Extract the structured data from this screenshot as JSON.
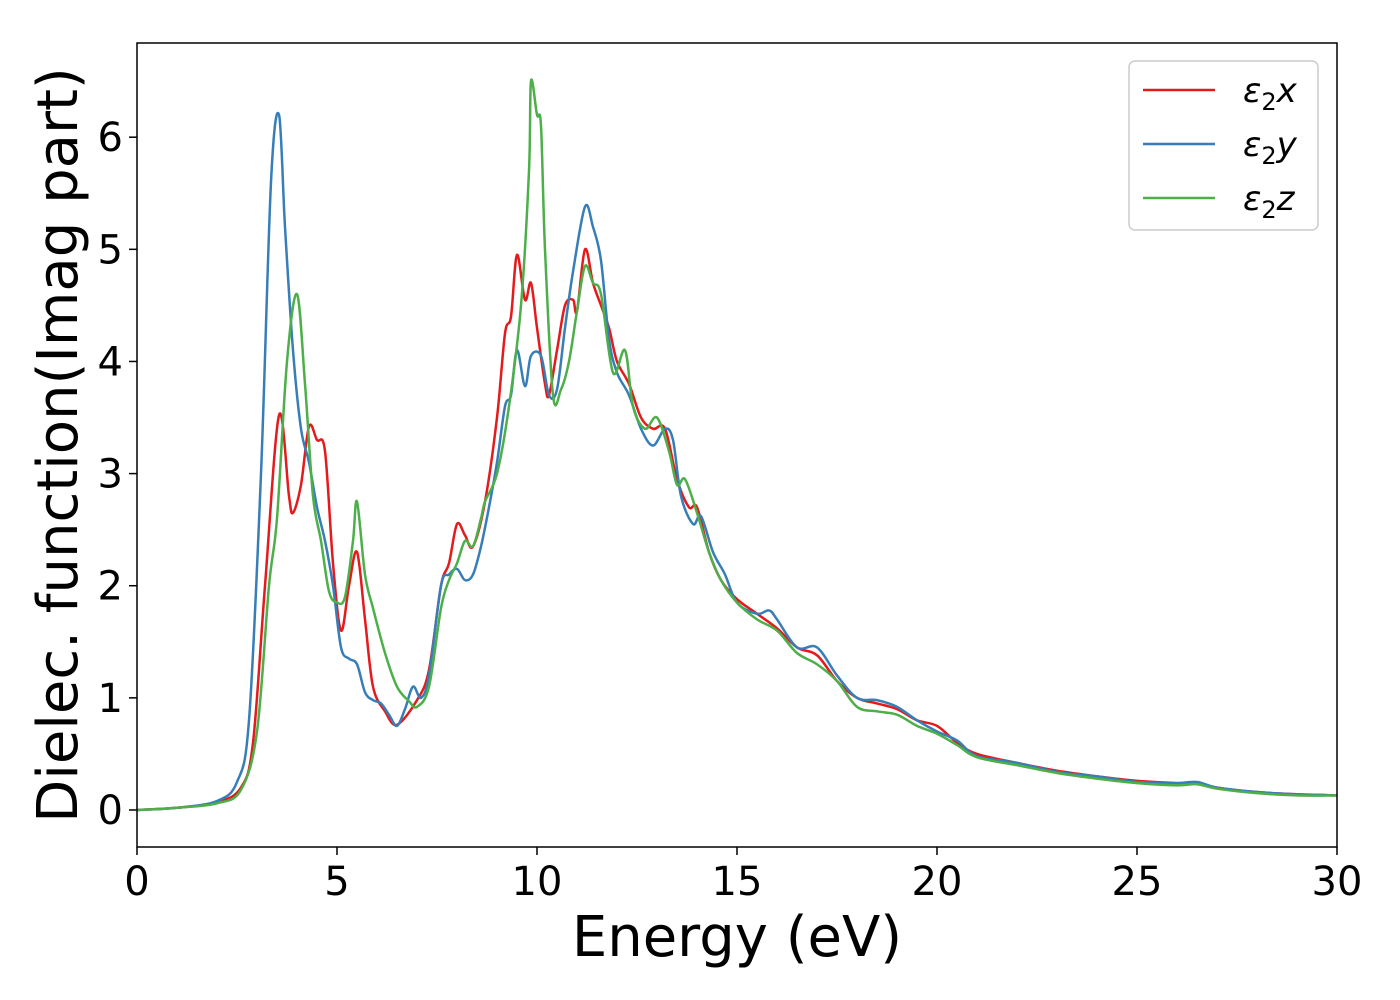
{
  "chart_data": {
    "type": "line",
    "title": "",
    "xlabel": "Energy (eV)",
    "ylabel": "Dielec. function(Imag part)",
    "xlim": [
      0,
      30
    ],
    "ylim": [
      -0.33,
      6.84
    ],
    "xticks": [
      0,
      5,
      10,
      15,
      20,
      25,
      30
    ],
    "yticks": [
      0,
      1,
      2,
      3,
      4,
      5,
      6
    ],
    "grid": false,
    "legend_position": "top-right",
    "series": [
      {
        "name": "ε₂x",
        "legend_main": "ε",
        "legend_sub": "2",
        "legend_suffix": "x",
        "color": "#e41a1c",
        "points": [
          [
            0,
            0
          ],
          [
            1,
            0.02
          ],
          [
            2,
            0.07
          ],
          [
            2.6,
            0.2
          ],
          [
            2.9,
            0.6
          ],
          [
            3.2,
            2.0
          ],
          [
            3.55,
            3.52
          ],
          [
            3.8,
            2.8
          ],
          [
            3.9,
            2.65
          ],
          [
            4.1,
            2.9
          ],
          [
            4.3,
            3.42
          ],
          [
            4.5,
            3.3
          ],
          [
            4.7,
            3.2
          ],
          [
            4.9,
            2.2
          ],
          [
            5.1,
            1.6
          ],
          [
            5.3,
            2.0
          ],
          [
            5.5,
            2.3
          ],
          [
            5.7,
            1.7
          ],
          [
            5.9,
            1.1
          ],
          [
            6.2,
            0.88
          ],
          [
            6.5,
            0.76
          ],
          [
            7.0,
            0.98
          ],
          [
            7.3,
            1.25
          ],
          [
            7.6,
            2.0
          ],
          [
            7.8,
            2.2
          ],
          [
            8.0,
            2.55
          ],
          [
            8.2,
            2.45
          ],
          [
            8.4,
            2.35
          ],
          [
            8.7,
            2.75
          ],
          [
            9.0,
            3.5
          ],
          [
            9.2,
            4.25
          ],
          [
            9.35,
            4.4
          ],
          [
            9.5,
            4.95
          ],
          [
            9.7,
            4.55
          ],
          [
            9.85,
            4.7
          ],
          [
            10.0,
            4.3
          ],
          [
            10.2,
            3.8
          ],
          [
            10.3,
            3.7
          ],
          [
            10.5,
            4.1
          ],
          [
            10.7,
            4.5
          ],
          [
            10.9,
            4.55
          ],
          [
            11.0,
            4.45
          ],
          [
            11.2,
            5.0
          ],
          [
            11.4,
            4.7
          ],
          [
            11.6,
            4.5
          ],
          [
            11.8,
            4.3
          ],
          [
            12.0,
            4.0
          ],
          [
            12.3,
            3.8
          ],
          [
            12.6,
            3.5
          ],
          [
            12.9,
            3.4
          ],
          [
            13.2,
            3.4
          ],
          [
            13.5,
            2.95
          ],
          [
            13.8,
            2.7
          ],
          [
            14.0,
            2.7
          ],
          [
            14.3,
            2.3
          ],
          [
            14.6,
            2.05
          ],
          [
            15.0,
            1.88
          ],
          [
            15.5,
            1.75
          ],
          [
            16.0,
            1.62
          ],
          [
            16.5,
            1.45
          ],
          [
            17.0,
            1.38
          ],
          [
            17.5,
            1.15
          ],
          [
            18.0,
            1.0
          ],
          [
            18.5,
            0.95
          ],
          [
            19.0,
            0.9
          ],
          [
            19.5,
            0.8
          ],
          [
            20.0,
            0.75
          ],
          [
            20.5,
            0.6
          ],
          [
            21.0,
            0.5
          ],
          [
            22.0,
            0.42
          ],
          [
            23.0,
            0.35
          ],
          [
            24.0,
            0.3
          ],
          [
            25.0,
            0.26
          ],
          [
            26.0,
            0.24
          ],
          [
            26.5,
            0.24
          ],
          [
            27.0,
            0.2
          ],
          [
            28.0,
            0.16
          ],
          [
            29.0,
            0.14
          ],
          [
            30.0,
            0.13
          ]
        ]
      },
      {
        "name": "ε₂y",
        "legend_main": "ε",
        "legend_sub": "2",
        "legend_suffix": "y",
        "color": "#377eb8",
        "points": [
          [
            0,
            0
          ],
          [
            1,
            0.02
          ],
          [
            2,
            0.08
          ],
          [
            2.5,
            0.25
          ],
          [
            2.8,
            0.8
          ],
          [
            3.1,
            3.0
          ],
          [
            3.35,
            5.6
          ],
          [
            3.55,
            6.2
          ],
          [
            3.7,
            5.2
          ],
          [
            3.9,
            4.1
          ],
          [
            4.1,
            3.4
          ],
          [
            4.3,
            3.1
          ],
          [
            4.5,
            2.7
          ],
          [
            4.7,
            2.4
          ],
          [
            4.9,
            2.0
          ],
          [
            5.1,
            1.45
          ],
          [
            5.3,
            1.35
          ],
          [
            5.5,
            1.3
          ],
          [
            5.7,
            1.05
          ],
          [
            5.9,
            0.98
          ],
          [
            6.1,
            0.95
          ],
          [
            6.3,
            0.85
          ],
          [
            6.5,
            0.75
          ],
          [
            6.7,
            0.9
          ],
          [
            6.9,
            1.1
          ],
          [
            7.1,
            1.0
          ],
          [
            7.3,
            1.2
          ],
          [
            7.6,
            2.0
          ],
          [
            7.8,
            2.1
          ],
          [
            8.0,
            2.15
          ],
          [
            8.2,
            2.05
          ],
          [
            8.4,
            2.1
          ],
          [
            8.6,
            2.35
          ],
          [
            8.8,
            2.7
          ],
          [
            9.0,
            3.1
          ],
          [
            9.2,
            3.6
          ],
          [
            9.35,
            3.7
          ],
          [
            9.5,
            4.1
          ],
          [
            9.7,
            3.78
          ],
          [
            9.85,
            4.05
          ],
          [
            10.1,
            4.05
          ],
          [
            10.3,
            3.7
          ],
          [
            10.5,
            3.75
          ],
          [
            10.7,
            4.3
          ],
          [
            10.9,
            4.8
          ],
          [
            11.2,
            5.38
          ],
          [
            11.4,
            5.2
          ],
          [
            11.6,
            4.9
          ],
          [
            11.8,
            4.2
          ],
          [
            12.0,
            3.9
          ],
          [
            12.3,
            3.7
          ],
          [
            12.6,
            3.4
          ],
          [
            12.9,
            3.25
          ],
          [
            13.2,
            3.4
          ],
          [
            13.4,
            3.3
          ],
          [
            13.6,
            2.8
          ],
          [
            13.9,
            2.55
          ],
          [
            14.1,
            2.62
          ],
          [
            14.4,
            2.3
          ],
          [
            14.7,
            2.1
          ],
          [
            15.0,
            1.85
          ],
          [
            15.5,
            1.75
          ],
          [
            15.8,
            1.78
          ],
          [
            16.0,
            1.7
          ],
          [
            16.5,
            1.45
          ],
          [
            17.0,
            1.45
          ],
          [
            17.5,
            1.2
          ],
          [
            18.0,
            1.0
          ],
          [
            18.5,
            0.98
          ],
          [
            19.0,
            0.92
          ],
          [
            19.5,
            0.8
          ],
          [
            20.0,
            0.7
          ],
          [
            20.5,
            0.62
          ],
          [
            21.0,
            0.48
          ],
          [
            22.0,
            0.42
          ],
          [
            23.0,
            0.34
          ],
          [
            24.0,
            0.3
          ],
          [
            25.0,
            0.25
          ],
          [
            26.0,
            0.24
          ],
          [
            26.5,
            0.25
          ],
          [
            27.0,
            0.2
          ],
          [
            28.0,
            0.16
          ],
          [
            29.0,
            0.14
          ],
          [
            30.0,
            0.13
          ]
        ]
      },
      {
        "name": "ε₂z",
        "legend_main": "ε",
        "legend_sub": "2",
        "legend_suffix": "z",
        "color": "#4daf4a",
        "points": [
          [
            0,
            0
          ],
          [
            1,
            0.02
          ],
          [
            2,
            0.06
          ],
          [
            2.6,
            0.18
          ],
          [
            3.0,
            0.7
          ],
          [
            3.3,
            2.0
          ],
          [
            3.5,
            2.6
          ],
          [
            3.75,
            4.0
          ],
          [
            4.0,
            4.6
          ],
          [
            4.2,
            3.8
          ],
          [
            4.4,
            2.8
          ],
          [
            4.6,
            2.4
          ],
          [
            4.8,
            1.95
          ],
          [
            5.0,
            1.85
          ],
          [
            5.2,
            1.9
          ],
          [
            5.4,
            2.4
          ],
          [
            5.5,
            2.75
          ],
          [
            5.7,
            2.1
          ],
          [
            5.9,
            1.8
          ],
          [
            6.2,
            1.4
          ],
          [
            6.5,
            1.1
          ],
          [
            6.8,
            0.97
          ],
          [
            7.0,
            0.92
          ],
          [
            7.3,
            1.1
          ],
          [
            7.6,
            1.8
          ],
          [
            7.8,
            2.05
          ],
          [
            8.0,
            2.2
          ],
          [
            8.2,
            2.4
          ],
          [
            8.4,
            2.35
          ],
          [
            8.6,
            2.6
          ],
          [
            8.7,
            2.75
          ],
          [
            9.0,
            3.0
          ],
          [
            9.3,
            3.6
          ],
          [
            9.6,
            4.5
          ],
          [
            9.8,
            5.7
          ],
          [
            9.85,
            6.5
          ],
          [
            10.0,
            6.2
          ],
          [
            10.1,
            6.1
          ],
          [
            10.2,
            5.0
          ],
          [
            10.4,
            3.7
          ],
          [
            10.6,
            3.75
          ],
          [
            10.8,
            4.0
          ],
          [
            11.0,
            4.45
          ],
          [
            11.2,
            4.85
          ],
          [
            11.4,
            4.7
          ],
          [
            11.6,
            4.6
          ],
          [
            11.9,
            3.9
          ],
          [
            12.2,
            4.1
          ],
          [
            12.4,
            3.6
          ],
          [
            12.7,
            3.4
          ],
          [
            13.0,
            3.5
          ],
          [
            13.3,
            3.2
          ],
          [
            13.5,
            2.9
          ],
          [
            13.7,
            2.95
          ],
          [
            14.0,
            2.65
          ],
          [
            14.3,
            2.3
          ],
          [
            14.6,
            2.05
          ],
          [
            15.0,
            1.85
          ],
          [
            15.5,
            1.7
          ],
          [
            16.0,
            1.6
          ],
          [
            16.5,
            1.4
          ],
          [
            17.0,
            1.3
          ],
          [
            17.5,
            1.15
          ],
          [
            18.0,
            0.92
          ],
          [
            18.5,
            0.88
          ],
          [
            19.0,
            0.85
          ],
          [
            19.5,
            0.75
          ],
          [
            20.0,
            0.68
          ],
          [
            20.5,
            0.58
          ],
          [
            21.0,
            0.47
          ],
          [
            22.0,
            0.4
          ],
          [
            23.0,
            0.33
          ],
          [
            24.0,
            0.28
          ],
          [
            25.0,
            0.24
          ],
          [
            26.0,
            0.22
          ],
          [
            26.5,
            0.23
          ],
          [
            27.0,
            0.19
          ],
          [
            28.0,
            0.15
          ],
          [
            29.0,
            0.13
          ],
          [
            30.0,
            0.13
          ]
        ]
      }
    ]
  }
}
